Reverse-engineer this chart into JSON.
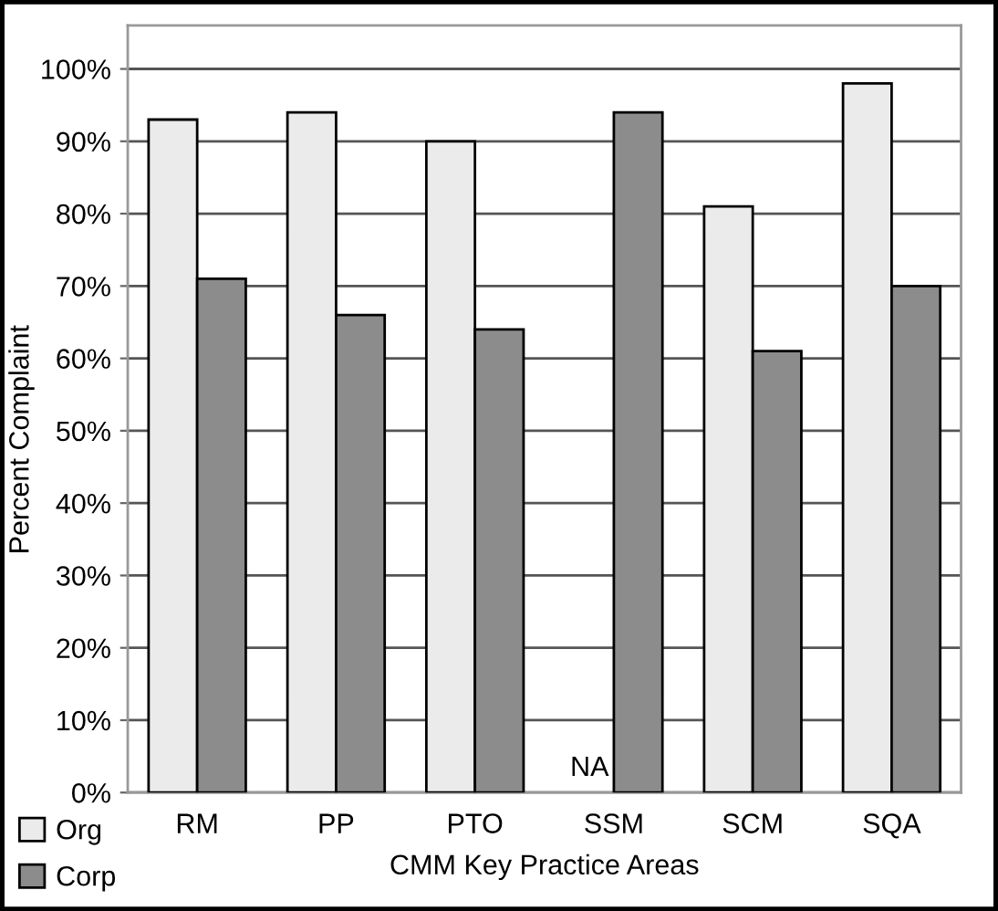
{
  "chart_data": {
    "type": "bar",
    "xlabel": "CMM Key Practice Areas",
    "ylabel": "Percent Complaint",
    "categories": [
      "RM",
      "PP",
      "PTO",
      "SSM",
      "SCM",
      "SQA"
    ],
    "series": [
      {
        "name": "Org",
        "color": "#ebebeb",
        "values": [
          93,
          94,
          90,
          null,
          81,
          98
        ]
      },
      {
        "name": "Corp",
        "color": "#8c8c8c",
        "values": [
          71,
          66,
          64,
          94,
          61,
          70
        ]
      }
    ],
    "ylim": [
      0,
      106
    ],
    "yticks": [
      {
        "value": 0,
        "label": "0%"
      },
      {
        "value": 10,
        "label": "10%"
      },
      {
        "value": 20,
        "label": "20%"
      },
      {
        "value": 30,
        "label": "30%"
      },
      {
        "value": 40,
        "label": "40%"
      },
      {
        "value": 50,
        "label": "50%"
      },
      {
        "value": 60,
        "label": "60%"
      },
      {
        "value": 70,
        "label": "70%"
      },
      {
        "value": 80,
        "label": "80%"
      },
      {
        "value": 90,
        "label": "90%"
      },
      {
        "value": 100,
        "label": "100%"
      }
    ],
    "annotations": [
      {
        "text": "NA",
        "x": "SSM",
        "y": 0
      }
    ],
    "grid": "y",
    "legend": "bottom left"
  }
}
